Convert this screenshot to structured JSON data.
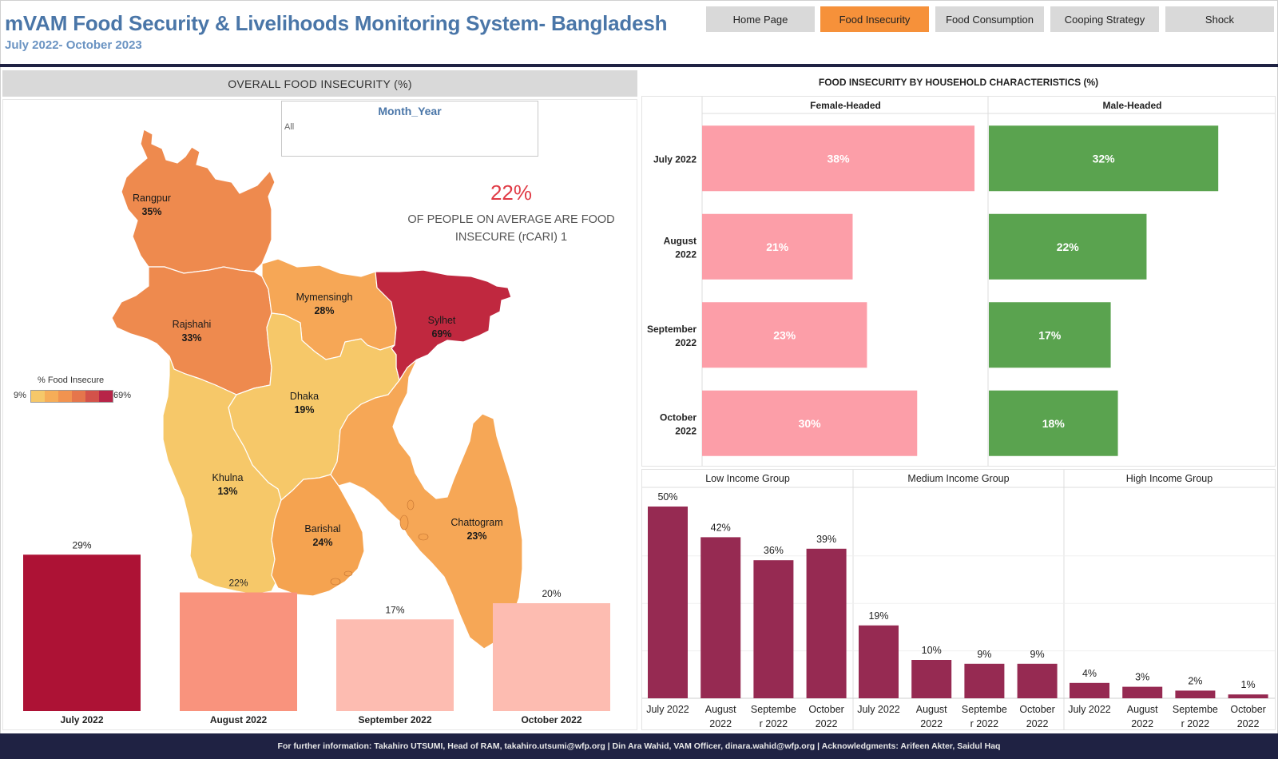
{
  "header": {
    "title": "mVAM  Food Security & Livelihoods Monitoring System- Bangladesh",
    "subtitle": "July 2022- October 2023"
  },
  "nav": [
    {
      "label": "Home Page",
      "active": false
    },
    {
      "label": "Food Insecurity",
      "active": true
    },
    {
      "label": "Food Consumption",
      "active": false
    },
    {
      "label": "Cooping Strategy",
      "active": false
    },
    {
      "label": "Shock",
      "active": false
    }
  ],
  "left": {
    "title": "OVERALL FOOD INSECURITY (%)",
    "filter": {
      "title": "Month_Year",
      "value": "All"
    },
    "kpi": {
      "value": "22%",
      "caption_line1": "OF PEOPLE ON AVERAGE ARE FOOD",
      "caption_line2": "INSECURE (rCARI) 1"
    },
    "legend": {
      "title": "% Food Insecure",
      "min": "9%",
      "max": "69%",
      "colors": [
        "#f6c869",
        "#f6ad58",
        "#f19350",
        "#e5764c",
        "#d3524a",
        "#b72448"
      ]
    }
  },
  "map": {
    "regions": [
      {
        "name": "Rangpur",
        "value": 35,
        "label": "35%",
        "color": "#ee8a4e"
      },
      {
        "name": "Rajshahi",
        "value": 33,
        "label": "33%",
        "color": "#ee8a4e"
      },
      {
        "name": "Mymensingh",
        "value": 28,
        "label": "28%",
        "color": "#f6a756"
      },
      {
        "name": "Sylhet",
        "value": 69,
        "label": "69%",
        "color": "#c0283f"
      },
      {
        "name": "Dhaka",
        "value": 19,
        "label": "19%",
        "color": "#f6c869"
      },
      {
        "name": "Khulna",
        "value": 13,
        "label": "13%",
        "color": "#f6c869"
      },
      {
        "name": "Barishal",
        "value": 24,
        "label": "24%",
        "color": "#f5a350"
      },
      {
        "name": "Chattogram",
        "value": 23,
        "label": "23%",
        "color": "#f6a756"
      }
    ]
  },
  "chart_data": [
    {
      "type": "bar",
      "title": "",
      "categories": [
        "July 2022",
        "August 2022",
        "September 2022",
        "October 2022"
      ],
      "values": [
        29,
        22,
        17,
        20
      ],
      "labels": [
        "29%",
        "22%",
        "17%",
        "20%"
      ],
      "colors": [
        "#ad1235",
        "#f9937d",
        "#fdbcb1",
        "#fdbcb1"
      ],
      "ylim": [
        0,
        40
      ]
    },
    {
      "type": "bar",
      "orientation": "horizontal",
      "title": "FOOD INSECURITY BY HOUSEHOLD CHARACTERISTICS (%)",
      "categories": [
        "July 2022",
        "August 2022",
        "September 2022",
        "October 2022"
      ],
      "category_lines": [
        [
          "July 2022"
        ],
        [
          "August",
          "2022"
        ],
        [
          "September",
          "2022"
        ],
        [
          "October",
          "2022"
        ]
      ],
      "series": [
        {
          "name": "Female-Headed",
          "values": [
            38,
            21,
            23,
            30
          ],
          "labels": [
            "38%",
            "21%",
            "23%",
            "30%"
          ],
          "color": "#fc9ea8"
        },
        {
          "name": "Male-Headed",
          "values": [
            32,
            22,
            17,
            18
          ],
          "labels": [
            "32%",
            "22%",
            "17%",
            "18%"
          ],
          "color": "#5aa34f"
        }
      ],
      "xlim": [
        0,
        40
      ]
    },
    {
      "type": "bar",
      "title": "",
      "categories": [
        "July 2022",
        "August 2022",
        "September 2022",
        "October 2022"
      ],
      "category_lines": [
        [
          "July 2022"
        ],
        [
          "August",
          "2022"
        ],
        [
          "Septembe",
          "r 2022"
        ],
        [
          "October",
          "2022"
        ]
      ],
      "series": [
        {
          "name": "Low Income Group",
          "values": [
            50,
            42,
            36,
            39
          ],
          "labels": [
            "50%",
            "42%",
            "36%",
            "39%"
          ]
        },
        {
          "name": "Medium Income Group",
          "values": [
            19,
            10,
            9,
            9
          ],
          "labels": [
            "19%",
            "10%",
            "9%",
            "9%"
          ]
        },
        {
          "name": "High Income Group",
          "values": [
            4,
            3,
            2,
            1
          ],
          "labels": [
            "4%",
            "3%",
            "2%",
            "1%"
          ]
        }
      ],
      "color": "#962a52",
      "ylim": [
        0,
        55
      ]
    }
  ],
  "footer": {
    "text": "For further information: Takahiro UTSUMI, Head of RAM, takahiro.utsumi@wfp.org | Din Ara Wahid, VAM Officer, dinara.wahid@wfp.org | Acknowledgments: Arifeen Akter, Saidul Haq"
  }
}
